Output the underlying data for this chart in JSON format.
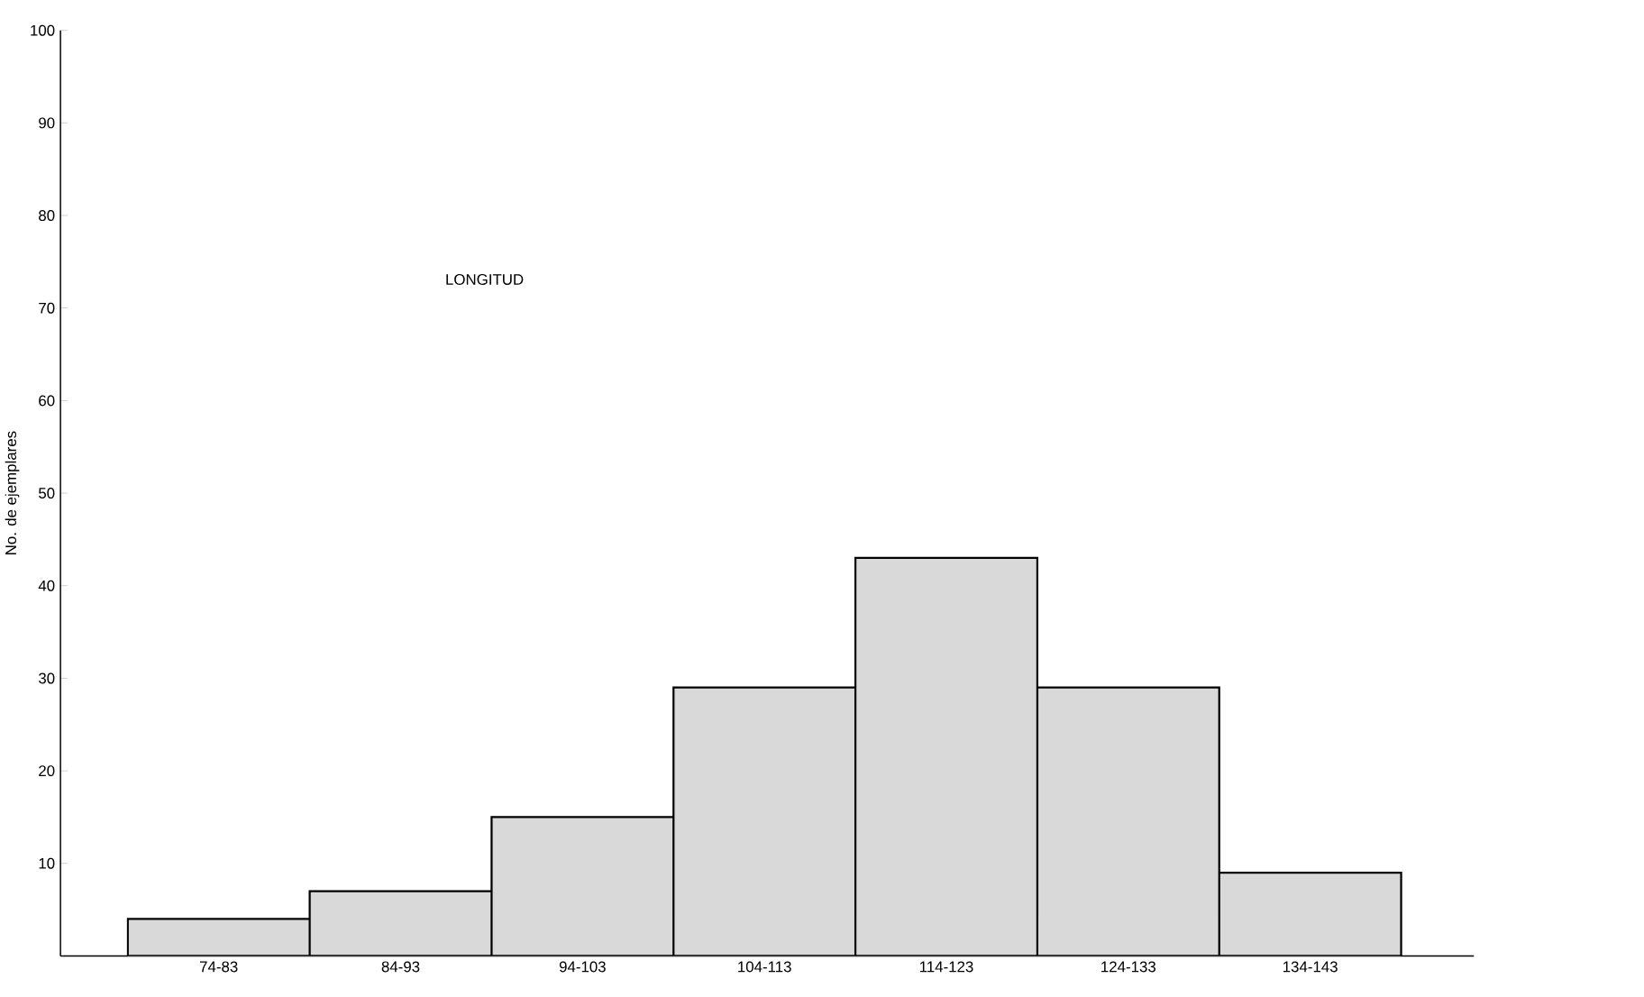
{
  "chart_data": {
    "type": "bar",
    "title": "LONGITUD",
    "ylabel": "No. de ejemplares",
    "categories": [
      "74-83",
      "84-93",
      "94-103",
      "104-113",
      "114-123",
      "124-133",
      "134-143"
    ],
    "values": [
      4,
      7,
      15,
      29,
      43,
      29,
      9
    ],
    "color": "#d9d9d9",
    "ylim": [
      0,
      100
    ],
    "yticks": [
      10,
      20,
      30,
      40,
      50,
      60,
      70,
      80,
      90,
      100
    ]
  }
}
